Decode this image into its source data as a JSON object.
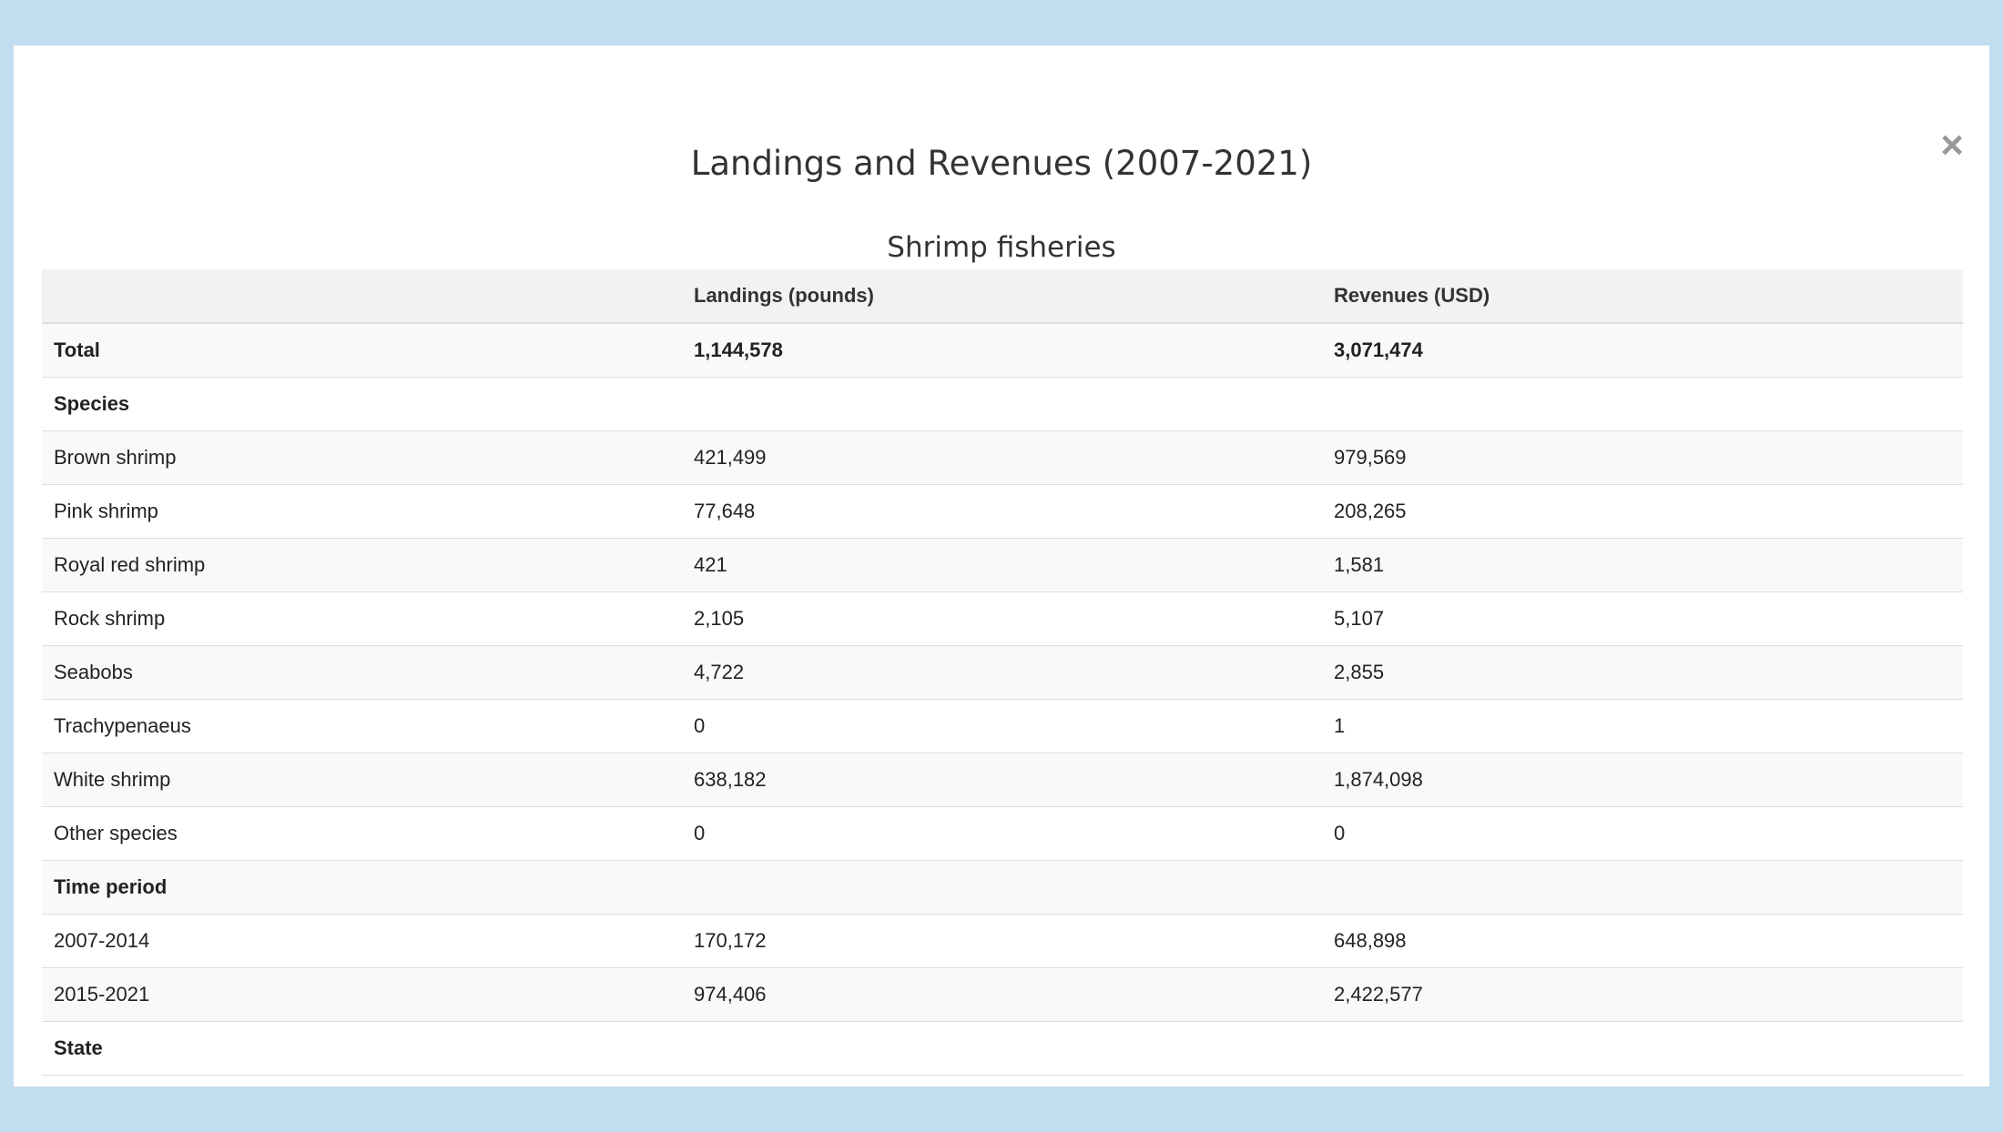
{
  "modal": {
    "title": "Landings and Revenues (2007-2021)",
    "subtitle": "Shrimp fisheries",
    "close": "×"
  },
  "table": {
    "header": [
      "Landings (pounds)",
      "Revenues (USD)"
    ],
    "total": [
      "Total",
      "1,144,578",
      "3,071,474"
    ],
    "sections": [
      {
        "title": "Species",
        "rows": [
          [
            "Brown shrimp",
            "421,499",
            "979,569"
          ],
          [
            "Pink shrimp",
            "77,648",
            "208,265"
          ],
          [
            "Royal red shrimp",
            "421",
            "1,581"
          ],
          [
            "Rock shrimp",
            "2,105",
            "5,107"
          ],
          [
            "Seabobs",
            "4,722",
            "2,855"
          ],
          [
            "Trachypenaeus",
            "0",
            "1"
          ],
          [
            "White shrimp",
            "638,182",
            "1,874,098"
          ],
          [
            "Other species",
            "0",
            "0"
          ]
        ]
      },
      {
        "title": "Time period",
        "rows": [
          [
            "2007-2014",
            "170,172",
            "648,898"
          ],
          [
            "2015-2021",
            "974,406",
            "2,422,577"
          ]
        ]
      },
      {
        "title": "State",
        "rows": []
      }
    ]
  }
}
